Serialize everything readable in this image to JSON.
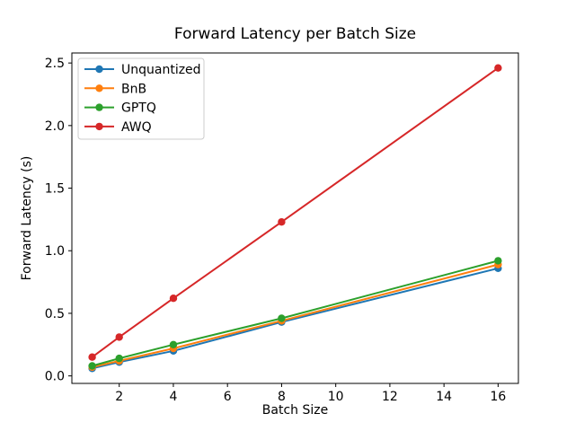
{
  "chart_data": {
    "type": "line",
    "title": "Forward Latency per Batch Size",
    "xlabel": "Batch Size",
    "ylabel": "Forward Latency (s)",
    "x": [
      1,
      2,
      4,
      8,
      16
    ],
    "series": [
      {
        "name": "Unquantized",
        "color": "#1f77b4",
        "values": [
          0.06,
          0.11,
          0.2,
          0.43,
          0.86
        ]
      },
      {
        "name": "BnB",
        "color": "#ff7f0e",
        "values": [
          0.07,
          0.12,
          0.22,
          0.44,
          0.89
        ]
      },
      {
        "name": "GPTQ",
        "color": "#2ca02c",
        "values": [
          0.08,
          0.14,
          0.25,
          0.46,
          0.92
        ]
      },
      {
        "name": "AWQ",
        "color": "#d62728",
        "values": [
          0.15,
          0.31,
          0.62,
          1.23,
          2.46
        ]
      }
    ],
    "xlim": [
      0.25,
      16.75
    ],
    "ylim": [
      -0.06,
      2.58
    ],
    "xticks": [
      2,
      4,
      6,
      8,
      10,
      12,
      14,
      16
    ],
    "xtick_labels": [
      "2",
      "4",
      "6",
      "8",
      "10",
      "12",
      "14",
      "16"
    ],
    "yticks": [
      0.0,
      0.5,
      1.0,
      1.5,
      2.0,
      2.5
    ],
    "ytick_labels": [
      "0.0",
      "0.5",
      "1.0",
      "1.5",
      "2.0",
      "2.5"
    ],
    "legend_position": "upper left",
    "grid": false,
    "marker": "o",
    "axis_color": "#000000",
    "background_color": "#ffffff",
    "legend_border_color": "#cccccc"
  }
}
